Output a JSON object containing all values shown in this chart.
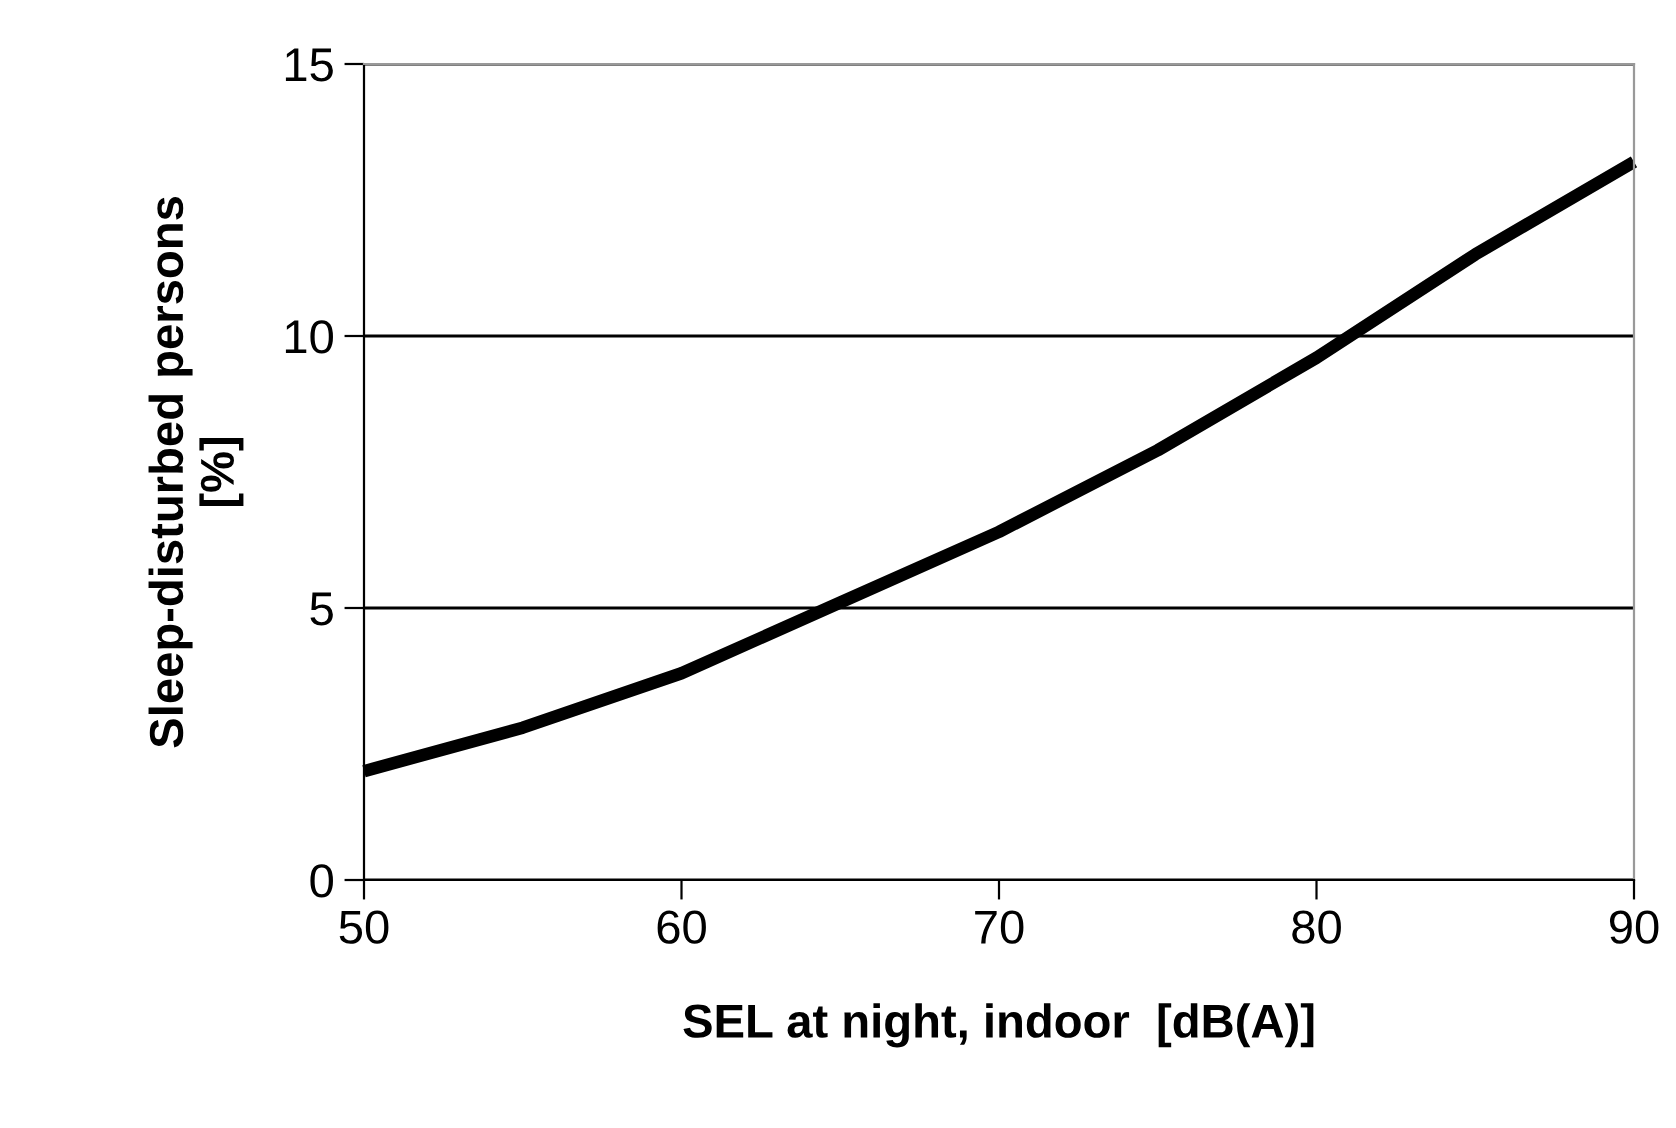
{
  "chart_data": {
    "type": "line",
    "xlabel": "SEL at night, indoor  [dB(A)]",
    "ylabel": "Sleep-disturbed persons\n[%]",
    "series": [
      {
        "color": "#000000",
        "x": [
          50,
          55,
          60,
          65,
          70,
          75,
          80,
          85,
          90
        ],
        "values": [
          2.0,
          2.8,
          3.8,
          5.1,
          6.4,
          7.9,
          9.6,
          11.5,
          13.2
        ]
      }
    ],
    "xlim": [
      50,
      90
    ],
    "xticks": [
      50,
      60,
      70,
      80,
      90
    ],
    "ylim": [
      0,
      15
    ],
    "yticks": [
      0,
      5,
      10,
      15
    ],
    "grid": "y",
    "legend": false,
    "marker": "none",
    "line_style": "solid"
  }
}
